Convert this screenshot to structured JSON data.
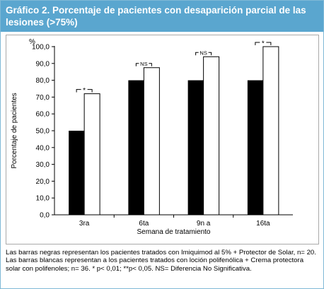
{
  "title": "Gráfico 2. Porcentaje de pacientes con desaparición parcial de las lesiones (>75%)",
  "caption": "Las barras negras representan los pacientes tratados con Imiquimod al 5% + Protector de Solar, n= 20. Las barras blancas representan a los pacientes tratados con loción polifenólica + Crema protectora solar con polifenoles; n= 36.  * p< 0,01; **p< 0,05. NS= Diferencia No Significativa.",
  "colors": {
    "header": "#5aa6cf",
    "black_bar": "#000000",
    "white_bar": "#ffffff",
    "border": "#7fb8d6"
  },
  "chart_data": {
    "type": "bar",
    "unit_label": "%",
    "ylabel": "Porcentaje de pacientes",
    "xlabel": "Semana de tratamiento",
    "ylim": [
      0,
      100
    ],
    "yticks": [
      "0,0",
      "10,0",
      "20,0",
      "30,0",
      "40,0",
      "50,0",
      "60,0",
      "70,0",
      "80,0",
      "90,0",
      "100,0"
    ],
    "categories": [
      "3ra",
      "6ta",
      "9n a",
      "16ta"
    ],
    "series": [
      {
        "values": [
          50,
          80,
          80,
          80
        ],
        "color": "#000000"
      },
      {
        "values": [
          72,
          87.5,
          94,
          100
        ],
        "color": "#ffffff"
      }
    ],
    "significance": [
      "*",
      "NS",
      "NS",
      "*"
    ],
    "grid": false,
    "legend": "none"
  }
}
